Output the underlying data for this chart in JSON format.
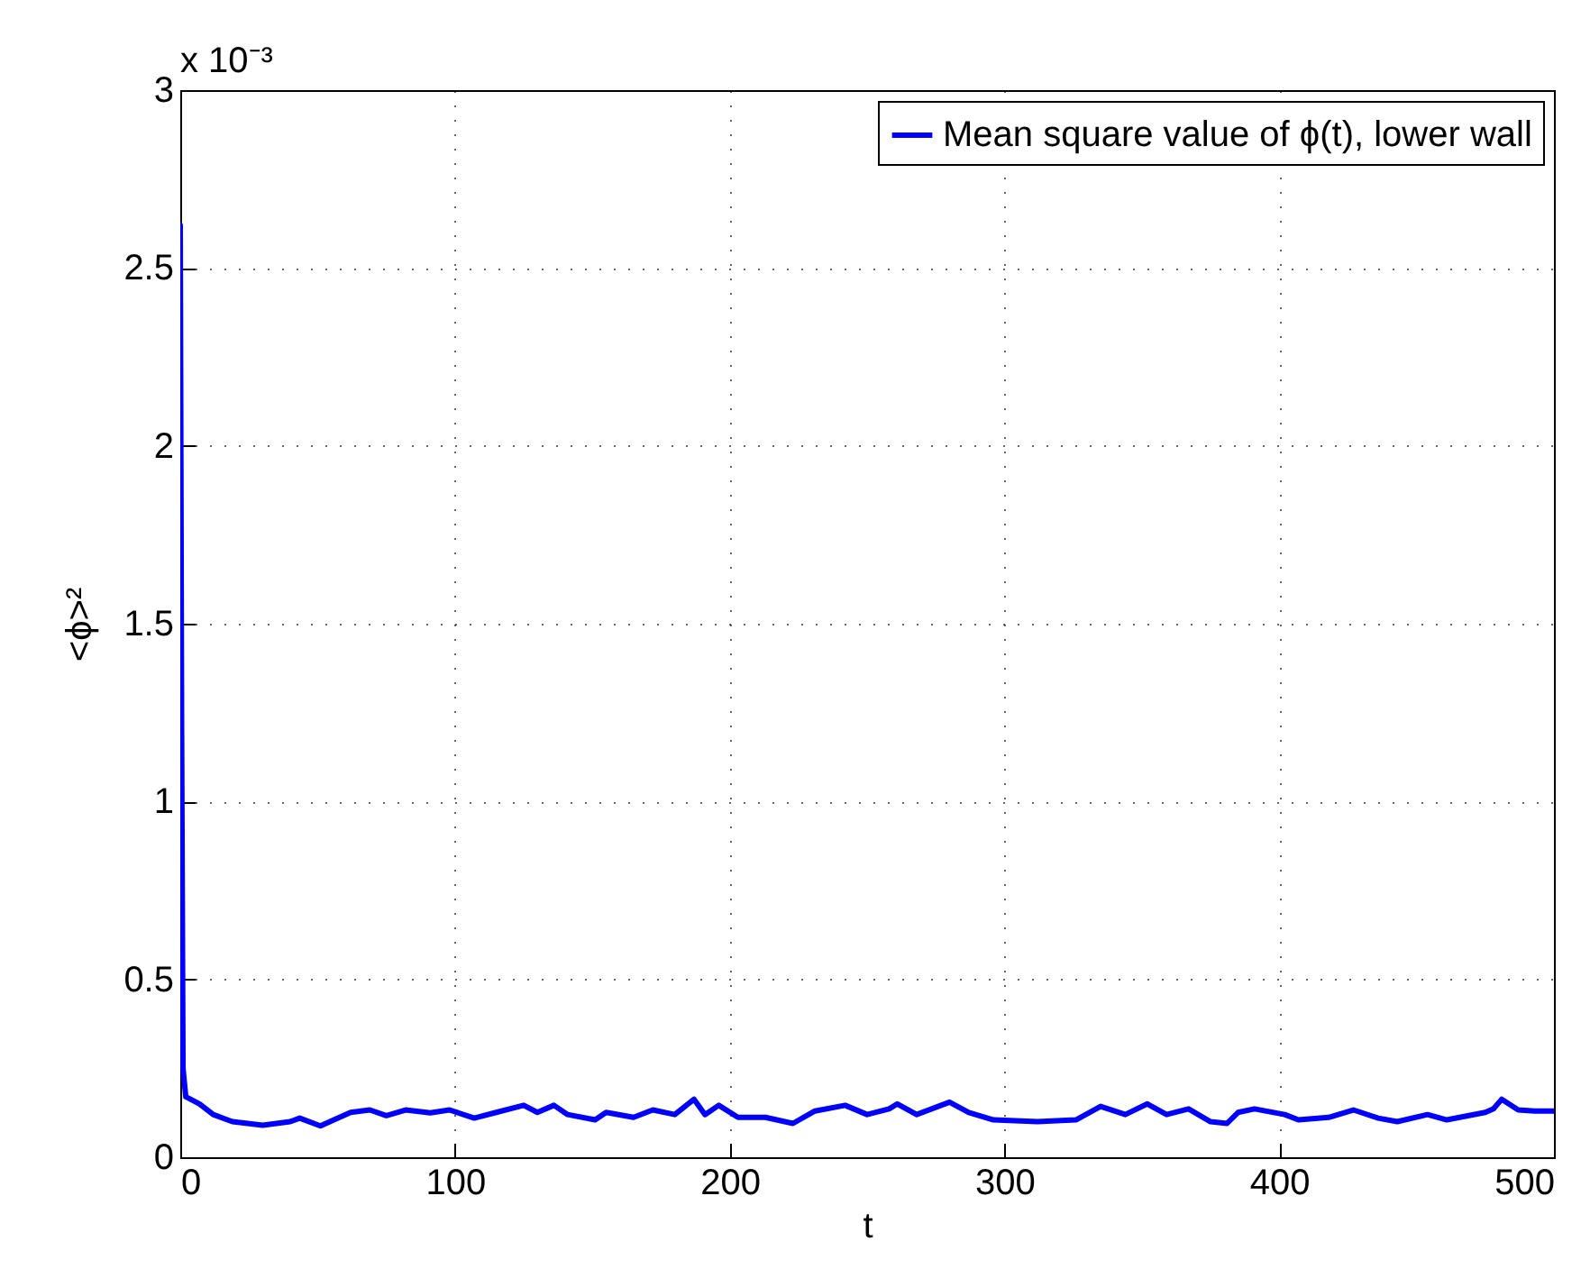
{
  "chart_data": {
    "type": "line",
    "xlabel": "t",
    "ylabel": "<ϕ>²",
    "annotations": [
      "x 10⁻³"
    ],
    "xlim": [
      0,
      500
    ],
    "xticks": [
      0,
      100,
      200,
      300,
      400,
      500
    ],
    "ylim": [
      0,
      3
    ],
    "yticks": [
      0,
      0.5,
      1,
      1.5,
      2,
      2.5,
      3
    ],
    "grid": true,
    "legend": "top right",
    "line_style": "solid",
    "marker": "none",
    "series": [
      {
        "name": "Mean square value of ϕ(t), lower wall",
        "color": "#0000ff",
        "x": [
          0,
          0.5,
          1,
          2,
          7,
          12,
          19,
          30,
          40,
          43.5,
          51,
          62,
          69,
          75,
          82,
          91,
          98,
          107,
          115,
          125,
          130,
          136,
          141,
          151,
          155,
          165,
          172,
          180,
          187,
          191,
          196,
          203,
          213,
          223,
          231,
          242,
          250,
          258,
          261,
          268,
          280,
          287,
          296,
          312,
          326,
          335,
          344,
          352,
          359,
          367,
          375,
          381,
          385,
          391,
          402,
          407,
          418,
          427,
          436,
          443,
          454,
          461,
          475,
          478,
          481,
          487,
          493,
          500
        ],
        "values": [
          2.62,
          1.2,
          0.25,
          0.17,
          0.15,
          0.12,
          0.1,
          0.09,
          0.1,
          0.11,
          0.088,
          0.126,
          0.133,
          0.117,
          0.133,
          0.125,
          0.133,
          0.11,
          0.126,
          0.146,
          0.126,
          0.146,
          0.12,
          0.105,
          0.126,
          0.112,
          0.133,
          0.12,
          0.163,
          0.12,
          0.146,
          0.112,
          0.112,
          0.095,
          0.13,
          0.146,
          0.12,
          0.136,
          0.15,
          0.12,
          0.155,
          0.126,
          0.105,
          0.1,
          0.105,
          0.143,
          0.12,
          0.15,
          0.12,
          0.136,
          0.1,
          0.095,
          0.126,
          0.136,
          0.12,
          0.105,
          0.112,
          0.133,
          0.11,
          0.1,
          0.12,
          0.105,
          0.126,
          0.136,
          0.163,
          0.133,
          0.13,
          0.13
        ]
      }
    ]
  }
}
